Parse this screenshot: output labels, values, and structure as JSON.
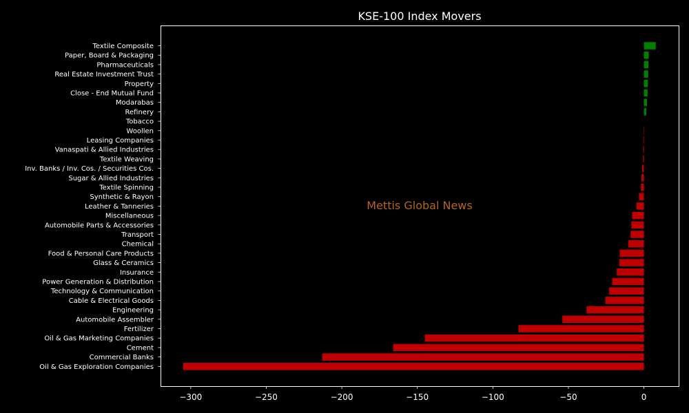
{
  "chart_data": {
    "type": "bar",
    "orientation": "horizontal",
    "title": "KSE-100 Index Movers",
    "watermark": "Mettis Global News",
    "xlabel": "",
    "ylabel": "",
    "xlim": [
      -320,
      23
    ],
    "xticks": [
      -300,
      -250,
      -200,
      -150,
      -100,
      -50,
      0
    ],
    "xtick_labels": [
      "−300",
      "−250",
      "−200",
      "−150",
      "−100",
      "−50",
      "0"
    ],
    "grid": false,
    "legend": "none",
    "positive_color": "#008000",
    "negative_color": "#c00000",
    "categories": [
      "Textile Composite",
      "Paper, Board & Packaging",
      "Pharmaceuticals",
      "Real Estate Investment Trust",
      "Property",
      "Close - End Mutual Fund",
      "Modarabas",
      "Refinery",
      "Tobacco",
      "Woollen",
      "Leasing Companies",
      "Vanaspati & Allied Industries",
      "Textile Weaving",
      "Inv. Banks / Inv. Cos. / Securities Cos.",
      "Sugar & Allied Industries",
      "Textile Spinning",
      "Synthetic & Rayon",
      "Leather & Tanneries",
      "Miscellaneous",
      "Automobile Parts & Accessories",
      "Transport",
      "Chemical",
      "Food & Personal Care Products",
      "Glass & Ceramics",
      "Insurance",
      "Power Generation & Distribution",
      "Technology & Communication",
      "Cable & Electrical Goods",
      "Engineering",
      "Automobile Assembler",
      "Fertilizer",
      "Oil & Gas Marketing Companies",
      "Cement",
      "Commercial Banks",
      "Oil & Gas Exploration Companies"
    ],
    "values": [
      7.8,
      3.2,
      3.0,
      2.8,
      2.6,
      2.4,
      2.0,
      1.6,
      0.0,
      -0.3,
      -0.4,
      -0.5,
      -0.6,
      -1.2,
      -1.6,
      -2.0,
      -3.3,
      -5.0,
      -7.8,
      -8.3,
      -8.8,
      -10.4,
      -16.0,
      -16.3,
      -18.0,
      -21.0,
      -23.0,
      -25.5,
      -38.0,
      -54.0,
      -83.0,
      -145.0,
      -166.0,
      -213.0,
      -305.0
    ]
  }
}
